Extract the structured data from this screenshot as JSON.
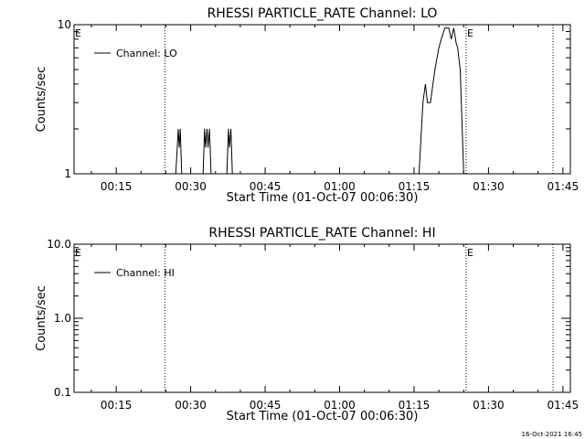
{
  "chart_data": [
    {
      "type": "line",
      "title": "RHESSI PARTICLE_RATE Channel: LO",
      "xlabel": "Start Time (01-Oct-07 00:06:30)",
      "ylabel": "Counts/sec",
      "y_scale": "log",
      "ylim": [
        1,
        10
      ],
      "y_ticks": [
        {
          "v": 1,
          "label": "1"
        },
        {
          "v": 10,
          "label": "10"
        }
      ],
      "xlim_minutes": [
        6.5,
        106.5
      ],
      "x_ticks": [
        {
          "m": 15,
          "label": "00:15"
        },
        {
          "m": 30,
          "label": "00:30"
        },
        {
          "m": 45,
          "label": "00:45"
        },
        {
          "m": 60,
          "label": "01:00"
        },
        {
          "m": 75,
          "label": "01:15"
        },
        {
          "m": 90,
          "label": "01:30"
        },
        {
          "m": 105,
          "label": "01:45"
        }
      ],
      "legend": {
        "label": "Channel: LO",
        "position": "top-left"
      },
      "vlines_minutes": [
        24.8,
        85.5,
        103.0
      ],
      "markers": [
        {
          "m": 6.5,
          "label": "E"
        },
        {
          "m": 85.5,
          "label": "E"
        }
      ],
      "series": [
        {
          "name": "Channel: LO",
          "points": [
            [
              27.0,
              1
            ],
            [
              27.3,
              1.5
            ],
            [
              27.5,
              2
            ],
            [
              27.7,
              1.5
            ],
            [
              27.9,
              2
            ],
            [
              28.2,
              1
            ],
            [
              32.5,
              1
            ],
            [
              32.8,
              2
            ],
            [
              33.0,
              1.5
            ],
            [
              33.3,
              2
            ],
            [
              33.5,
              1.5
            ],
            [
              33.8,
              2
            ],
            [
              34.1,
              1
            ],
            [
              37.3,
              1
            ],
            [
              37.6,
              2
            ],
            [
              37.8,
              1.5
            ],
            [
              38.1,
              2
            ],
            [
              38.4,
              1
            ],
            [
              76.0,
              1
            ],
            [
              76.5,
              2
            ],
            [
              76.8,
              3
            ],
            [
              77.3,
              4
            ],
            [
              77.7,
              3
            ],
            [
              78.3,
              3
            ],
            [
              79.2,
              5
            ],
            [
              80.0,
              7
            ],
            [
              80.5,
              8
            ],
            [
              81.2,
              9.5
            ],
            [
              82.0,
              9.5
            ],
            [
              82.5,
              8
            ],
            [
              83.0,
              9.5
            ],
            [
              83.5,
              7.5
            ],
            [
              83.8,
              7
            ],
            [
              84.3,
              5
            ],
            [
              85.0,
              1
            ]
          ]
        }
      ]
    },
    {
      "type": "line",
      "title": "RHESSI PARTICLE_RATE Channel: HI",
      "xlabel": "Start Time (01-Oct-07 00:06:30)",
      "ylabel": "Counts/sec",
      "y_scale": "log",
      "ylim": [
        0.1,
        10
      ],
      "y_ticks": [
        {
          "v": 0.1,
          "label": "0.1"
        },
        {
          "v": 1,
          "label": "1.0"
        },
        {
          "v": 10,
          "label": "10.0"
        }
      ],
      "xlim_minutes": [
        6.5,
        106.5
      ],
      "x_ticks": [
        {
          "m": 15,
          "label": "00:15"
        },
        {
          "m": 30,
          "label": "00:30"
        },
        {
          "m": 45,
          "label": "00:45"
        },
        {
          "m": 60,
          "label": "01:00"
        },
        {
          "m": 75,
          "label": "01:15"
        },
        {
          "m": 90,
          "label": "01:30"
        },
        {
          "m": 105,
          "label": "01:45"
        }
      ],
      "legend": {
        "label": "Channel: HI",
        "position": "top-left"
      },
      "vlines_minutes": [
        24.8,
        85.5,
        103.0
      ],
      "markers": [
        {
          "m": 6.5,
          "label": "E"
        },
        {
          "m": 85.5,
          "label": "E"
        }
      ],
      "series": [
        {
          "name": "Channel: HI",
          "points": []
        }
      ]
    }
  ],
  "footer": {
    "timestamp": "16-Oct-2021 16:45"
  }
}
